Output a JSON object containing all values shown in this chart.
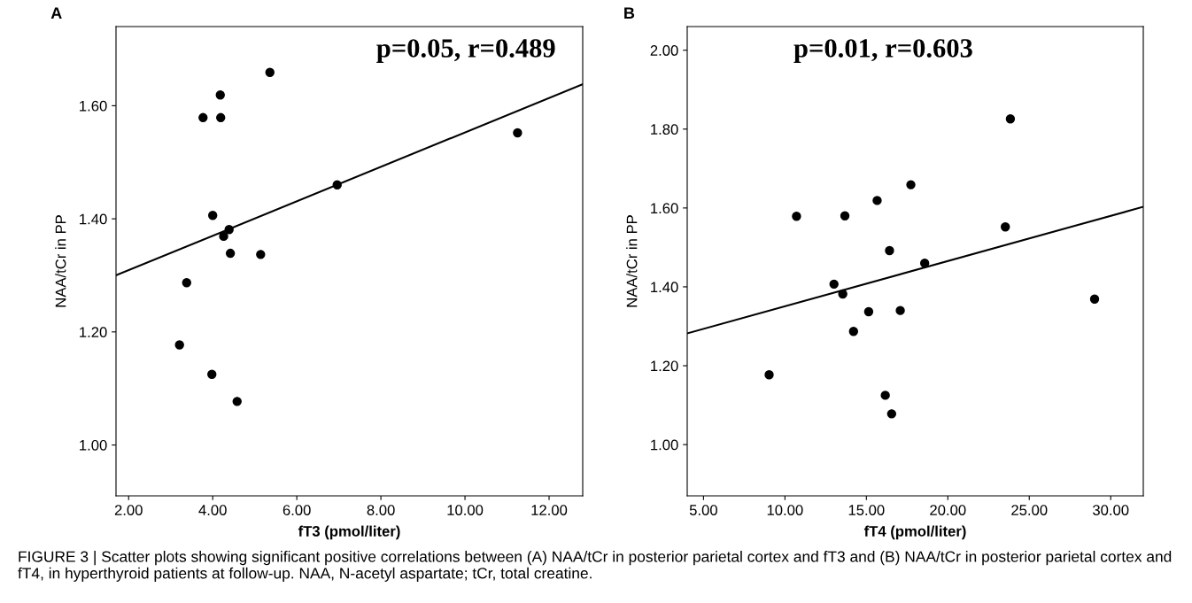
{
  "chart_data": [
    {
      "type": "scatter",
      "xlabel": "fT3 (pmol/liter)",
      "ylabel": "NAA/tCr in PP",
      "grid": false,
      "legend": false,
      "xlim": [
        1.7,
        12.8
      ],
      "xticks": [
        {
          "value": 2,
          "label": "2.00"
        },
        {
          "value": 4,
          "label": "4.00"
        },
        {
          "value": 6,
          "label": "6.00"
        },
        {
          "value": 8,
          "label": "8.00"
        },
        {
          "value": 10,
          "label": "10.00"
        },
        {
          "value": 12,
          "label": "12.00"
        }
      ],
      "ylim": [
        0.91,
        1.74
      ],
      "yticks": [
        {
          "value": 1.0,
          "label": "1.00"
        },
        {
          "value": 1.2,
          "label": "1.20"
        },
        {
          "value": 1.4,
          "label": "1.40"
        },
        {
          "value": 1.6,
          "label": "1.60"
        }
      ],
      "annotations": [
        "A",
        "p=0.05, r=0.489"
      ],
      "series": [
        {
          "marker": "circle",
          "color": "#000000",
          "x": [
            5.36,
            4.18,
            3.77,
            4.19,
            11.25,
            6.96,
            4.0,
            4.39,
            4.26,
            4.42,
            5.14,
            3.38,
            3.21,
            3.98,
            4.58
          ],
          "values": [
            1.659,
            1.619,
            1.579,
            1.579,
            1.552,
            1.46,
            1.406,
            1.381,
            1.369,
            1.339,
            1.337,
            1.287,
            1.177,
            1.125,
            1.077
          ]
        },
        {
          "type": "line",
          "color": "#000000",
          "x": [
            1.7,
            12.8
          ],
          "values": [
            1.3,
            1.638
          ]
        }
      ]
    },
    {
      "type": "scatter",
      "xlabel": "fT4 (pmol/liter)",
      "ylabel": "NAA/tCr in PP",
      "grid": false,
      "legend": false,
      "xlim": [
        4.0,
        32.0
      ],
      "xticks": [
        {
          "value": 5,
          "label": "5.00"
        },
        {
          "value": 10,
          "label": "10.00"
        },
        {
          "value": 15,
          "label": "15.00"
        },
        {
          "value": 20,
          "label": "20.00"
        },
        {
          "value": 25,
          "label": "25.00"
        },
        {
          "value": 30,
          "label": "30.00"
        }
      ],
      "ylim": [
        0.87,
        2.06
      ],
      "yticks": [
        {
          "value": 1.0,
          "label": "1.00"
        },
        {
          "value": 1.2,
          "label": "1.20"
        },
        {
          "value": 1.4,
          "label": "1.40"
        },
        {
          "value": 1.6,
          "label": "1.60"
        },
        {
          "value": 1.8,
          "label": "1.80"
        },
        {
          "value": 2.0,
          "label": "2.00"
        }
      ],
      "annotations": [
        "B",
        "p=0.01, r=0.603",
        "FIGURE 3 | Scatter plots showing significant positive correlations between (A) NAA/tCr in posterior parietal cortex and fT3 and (B) NAA/tCr in posterior parietal cortex and fT4, in hyperthyroid patients at follow-up. NAA, N-acetyl aspartate; tCr, total creatine."
      ],
      "series": [
        {
          "marker": "circle",
          "color": "#000000",
          "x": [
            23.84,
            17.73,
            15.66,
            10.71,
            13.68,
            23.53,
            16.42,
            18.58,
            13.01,
            13.55,
            15.14,
            17.08,
            29.01,
            14.21,
            9.03,
            16.16,
            16.55
          ],
          "values": [
            1.826,
            1.659,
            1.619,
            1.579,
            1.58,
            1.552,
            1.492,
            1.46,
            1.407,
            1.382,
            1.337,
            1.34,
            1.369,
            1.287,
            1.177,
            1.125,
            1.078
          ]
        },
        {
          "type": "line",
          "color": "#000000",
          "x": [
            4.0,
            32.0
          ],
          "values": [
            1.282,
            1.603
          ]
        }
      ]
    }
  ]
}
